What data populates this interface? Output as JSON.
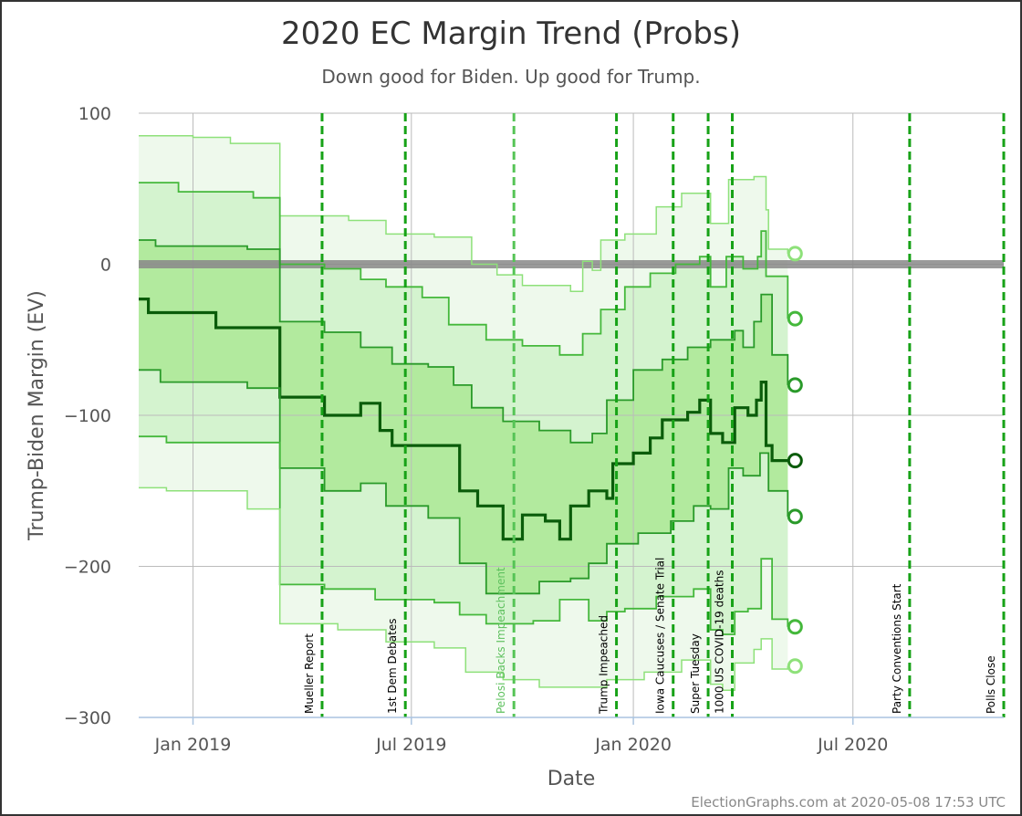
{
  "chart_data": {
    "type": "line",
    "title": "2020 EC Margin Trend (Probs)",
    "subtitle": "Down good for Biden. Up good for Trump.",
    "xlabel": "Date",
    "ylabel": "Trump-Biden Margin (EV)",
    "credit": "ElectionGraphs.com at 2020-05-08 17:53 UTC",
    "ylim": [
      -300,
      100
    ],
    "xlim": [
      "2018-11-17",
      "2020-11-03"
    ],
    "yticks": [
      100,
      0,
      -100,
      -200,
      -300
    ],
    "ytick_labels": [
      "100",
      "0",
      "−100",
      "−200",
      "−300"
    ],
    "xticks": [
      {
        "date": "2019-01-01",
        "label": "Jan 2019"
      },
      {
        "date": "2019-07-01",
        "label": "Jul 2019"
      },
      {
        "date": "2020-01-01",
        "label": "Jan 2020"
      },
      {
        "date": "2020-07-01",
        "label": "Jul 2020"
      }
    ],
    "grid": true,
    "zero_line": 0,
    "events": [
      {
        "date": "2019-04-18",
        "label": "Mueller Report"
      },
      {
        "date": "2019-06-26",
        "label": "1st Dem Debates"
      },
      {
        "date": "2019-09-24",
        "label": "Pelosi Backs Impeachment"
      },
      {
        "date": "2019-12-18",
        "label": "Trump Impeached"
      },
      {
        "date": "2020-02-03",
        "label": "Iowa Caucuses / Senate Trial"
      },
      {
        "date": "2020-03-03",
        "label": "Super Tuesday"
      },
      {
        "date": "2020-03-23",
        "label": "1000 US COVID-19 deaths"
      },
      {
        "date": "2020-08-17",
        "label": "Party Conventions Start"
      },
      {
        "date": "2020-11-03",
        "label": "Polls Close"
      }
    ],
    "last_date": "2020-05-08",
    "series": [
      {
        "role": "upper-outer",
        "points": [
          [
            "2018-11-17",
            85
          ],
          [
            "2019-01-01",
            84
          ],
          [
            "2019-02-01",
            80
          ],
          [
            "2019-03-14",
            80
          ],
          [
            "2019-03-14",
            32
          ],
          [
            "2019-05-10",
            29
          ],
          [
            "2019-06-10",
            20
          ],
          [
            "2019-07-20",
            18
          ],
          [
            "2019-08-20",
            0
          ],
          [
            "2019-09-10",
            -7
          ],
          [
            "2019-10-01",
            -14
          ],
          [
            "2019-11-10",
            -18
          ],
          [
            "2019-11-20",
            2
          ],
          [
            "2019-11-28",
            -4
          ],
          [
            "2019-12-05",
            16
          ],
          [
            "2019-12-25",
            20
          ],
          [
            "2020-01-20",
            38
          ],
          [
            "2020-02-10",
            47
          ],
          [
            "2020-03-05",
            27
          ],
          [
            "2020-03-20",
            56
          ],
          [
            "2020-04-10",
            58
          ],
          [
            "2020-04-16",
            58
          ],
          [
            "2020-04-20",
            36
          ],
          [
            "2020-04-22",
            10
          ],
          [
            "2020-05-08",
            7
          ]
        ]
      },
      {
        "role": "upper-mid",
        "points": [
          [
            "2018-11-17",
            54
          ],
          [
            "2018-12-20",
            48
          ],
          [
            "2019-01-20",
            48
          ],
          [
            "2019-02-20",
            44
          ],
          [
            "2019-03-14",
            44
          ],
          [
            "2019-03-14",
            0
          ],
          [
            "2019-04-20",
            -3
          ],
          [
            "2019-05-20",
            -10
          ],
          [
            "2019-06-10",
            -15
          ],
          [
            "2019-07-10",
            -22
          ],
          [
            "2019-08-01",
            -40
          ],
          [
            "2019-09-01",
            -50
          ],
          [
            "2019-10-01",
            -54
          ],
          [
            "2019-11-01",
            -60
          ],
          [
            "2019-11-20",
            -46
          ],
          [
            "2019-12-05",
            -30
          ],
          [
            "2019-12-25",
            -15
          ],
          [
            "2020-01-15",
            -6
          ],
          [
            "2020-02-05",
            0
          ],
          [
            "2020-02-25",
            5
          ],
          [
            "2020-03-05",
            -15
          ],
          [
            "2020-03-18",
            5
          ],
          [
            "2020-04-01",
            -3
          ],
          [
            "2020-04-13",
            5
          ],
          [
            "2020-04-16",
            22
          ],
          [
            "2020-04-20",
            -8
          ],
          [
            "2020-05-08",
            -36
          ]
        ]
      },
      {
        "role": "upper-inner",
        "points": [
          [
            "2018-11-17",
            16
          ],
          [
            "2018-12-01",
            12
          ],
          [
            "2019-01-15",
            12
          ],
          [
            "2019-02-15",
            10
          ],
          [
            "2019-03-14",
            10
          ],
          [
            "2019-03-14",
            -38
          ],
          [
            "2019-04-20",
            -45
          ],
          [
            "2019-05-20",
            -55
          ],
          [
            "2019-06-15",
            -66
          ],
          [
            "2019-07-15",
            -68
          ],
          [
            "2019-08-05",
            -80
          ],
          [
            "2019-08-20",
            -95
          ],
          [
            "2019-09-15",
            -104
          ],
          [
            "2019-10-15",
            -110
          ],
          [
            "2019-11-10",
            -118
          ],
          [
            "2019-11-28",
            -112
          ],
          [
            "2019-12-10",
            -90
          ],
          [
            "2020-01-01",
            -70
          ],
          [
            "2020-01-25",
            -63
          ],
          [
            "2020-02-15",
            -55
          ],
          [
            "2020-03-05",
            -50
          ],
          [
            "2020-03-25",
            -44
          ],
          [
            "2020-04-01",
            -55
          ],
          [
            "2020-04-10",
            -38
          ],
          [
            "2020-04-16",
            -20
          ],
          [
            "2020-04-25",
            -60
          ],
          [
            "2020-05-08",
            -80
          ]
        ]
      },
      {
        "role": "median",
        "points": [
          [
            "2018-11-17",
            -23
          ],
          [
            "2018-11-25",
            -32
          ],
          [
            "2019-01-10",
            -32
          ],
          [
            "2019-01-20",
            -42
          ],
          [
            "2019-03-14",
            -42
          ],
          [
            "2019-03-14",
            -88
          ],
          [
            "2019-04-10",
            -88
          ],
          [
            "2019-04-20",
            -100
          ],
          [
            "2019-05-10",
            -100
          ],
          [
            "2019-05-20",
            -92
          ],
          [
            "2019-06-05",
            -110
          ],
          [
            "2019-06-15",
            -120
          ],
          [
            "2019-07-20",
            -120
          ],
          [
            "2019-08-10",
            -150
          ],
          [
            "2019-08-25",
            -160
          ],
          [
            "2019-09-15",
            -182
          ],
          [
            "2019-10-01",
            -166
          ],
          [
            "2019-10-20",
            -170
          ],
          [
            "2019-11-01",
            -182
          ],
          [
            "2019-11-10",
            -160
          ],
          [
            "2019-11-25",
            -150
          ],
          [
            "2019-12-10",
            -155
          ],
          [
            "2019-12-15",
            -132
          ],
          [
            "2020-01-01",
            -125
          ],
          [
            "2020-01-15",
            -115
          ],
          [
            "2020-01-25",
            -103
          ],
          [
            "2020-02-15",
            -98
          ],
          [
            "2020-02-25",
            -90
          ],
          [
            "2020-03-05",
            -112
          ],
          [
            "2020-03-15",
            -118
          ],
          [
            "2020-03-25",
            -95
          ],
          [
            "2020-04-05",
            -100
          ],
          [
            "2020-04-12",
            -90
          ],
          [
            "2020-04-16",
            -78
          ],
          [
            "2020-04-20",
            -120
          ],
          [
            "2020-04-25",
            -130
          ],
          [
            "2020-05-08",
            -130
          ]
        ]
      },
      {
        "role": "lower-inner",
        "points": [
          [
            "2018-11-17",
            -70
          ],
          [
            "2018-12-05",
            -78
          ],
          [
            "2019-01-20",
            -78
          ],
          [
            "2019-02-15",
            -82
          ],
          [
            "2019-03-14",
            -82
          ],
          [
            "2019-03-14",
            -135
          ],
          [
            "2019-04-20",
            -150
          ],
          [
            "2019-05-20",
            -145
          ],
          [
            "2019-06-10",
            -160
          ],
          [
            "2019-07-15",
            -168
          ],
          [
            "2019-08-10",
            -198
          ],
          [
            "2019-09-01",
            -218
          ],
          [
            "2019-09-20",
            -218
          ],
          [
            "2019-10-15",
            -210
          ],
          [
            "2019-11-10",
            -208
          ],
          [
            "2019-11-25",
            -198
          ],
          [
            "2019-12-10",
            -185
          ],
          [
            "2020-01-05",
            -178
          ],
          [
            "2020-02-01",
            -170
          ],
          [
            "2020-02-20",
            -160
          ],
          [
            "2020-03-05",
            -162
          ],
          [
            "2020-03-20",
            -135
          ],
          [
            "2020-04-01",
            -140
          ],
          [
            "2020-04-15",
            -125
          ],
          [
            "2020-04-22",
            -150
          ],
          [
            "2020-05-08",
            -167
          ]
        ]
      },
      {
        "role": "lower-mid",
        "points": [
          [
            "2018-11-17",
            -114
          ],
          [
            "2018-12-10",
            -118
          ],
          [
            "2019-02-01",
            -118
          ],
          [
            "2019-03-14",
            -124
          ],
          [
            "2019-03-14",
            -212
          ],
          [
            "2019-04-20",
            -215
          ],
          [
            "2019-06-01",
            -222
          ],
          [
            "2019-07-20",
            -224
          ],
          [
            "2019-08-10",
            -232
          ],
          [
            "2019-09-01",
            -238
          ],
          [
            "2019-10-10",
            -236
          ],
          [
            "2019-11-01",
            -222
          ],
          [
            "2019-11-25",
            -236
          ],
          [
            "2019-12-10",
            -230
          ],
          [
            "2019-12-25",
            -228
          ],
          [
            "2020-01-20",
            -220
          ],
          [
            "2020-02-20",
            -215
          ],
          [
            "2020-03-05",
            -242
          ],
          [
            "2020-03-15",
            -245
          ],
          [
            "2020-03-25",
            -230
          ],
          [
            "2020-04-05",
            -228
          ],
          [
            "2020-04-16",
            -195
          ],
          [
            "2020-04-25",
            -235
          ],
          [
            "2020-05-08",
            -240
          ]
        ]
      },
      {
        "role": "lower-outer",
        "points": [
          [
            "2018-11-17",
            -148
          ],
          [
            "2018-12-10",
            -150
          ],
          [
            "2019-02-15",
            -162
          ],
          [
            "2019-03-14",
            -162
          ],
          [
            "2019-03-14",
            -238
          ],
          [
            "2019-05-01",
            -242
          ],
          [
            "2019-06-10",
            -250
          ],
          [
            "2019-07-20",
            -254
          ],
          [
            "2019-08-15",
            -270
          ],
          [
            "2019-09-15",
            -275
          ],
          [
            "2019-10-15",
            -280
          ],
          [
            "2019-11-10",
            -280
          ],
          [
            "2019-12-10",
            -275
          ],
          [
            "2020-01-10",
            -270
          ],
          [
            "2020-02-10",
            -262
          ],
          [
            "2020-03-05",
            -278
          ],
          [
            "2020-03-15",
            -282
          ],
          [
            "2020-03-25",
            -264
          ],
          [
            "2020-04-10",
            -255
          ],
          [
            "2020-04-16",
            -248
          ],
          [
            "2020-04-25",
            -268
          ],
          [
            "2020-05-08",
            -266
          ]
        ]
      }
    ],
    "final_values": [
      7,
      -36,
      -80,
      -130,
      -167,
      -240,
      -266
    ],
    "colors": {
      "band_outer": "#eef9ec",
      "band_mid": "#d4f3cf",
      "band_inner": "#b2ea9e",
      "line_outer": "#8ee17a",
      "line_mid": "#44b83b",
      "line_inner": "#2a9a2a",
      "median": "#0a5c0a",
      "event_line": "#17a217",
      "zero_line": "#888888",
      "grid": "#bbbbbb",
      "axis": "#555555",
      "event_label_dark": "#000000",
      "event_label_light": "#5fc15f"
    }
  }
}
